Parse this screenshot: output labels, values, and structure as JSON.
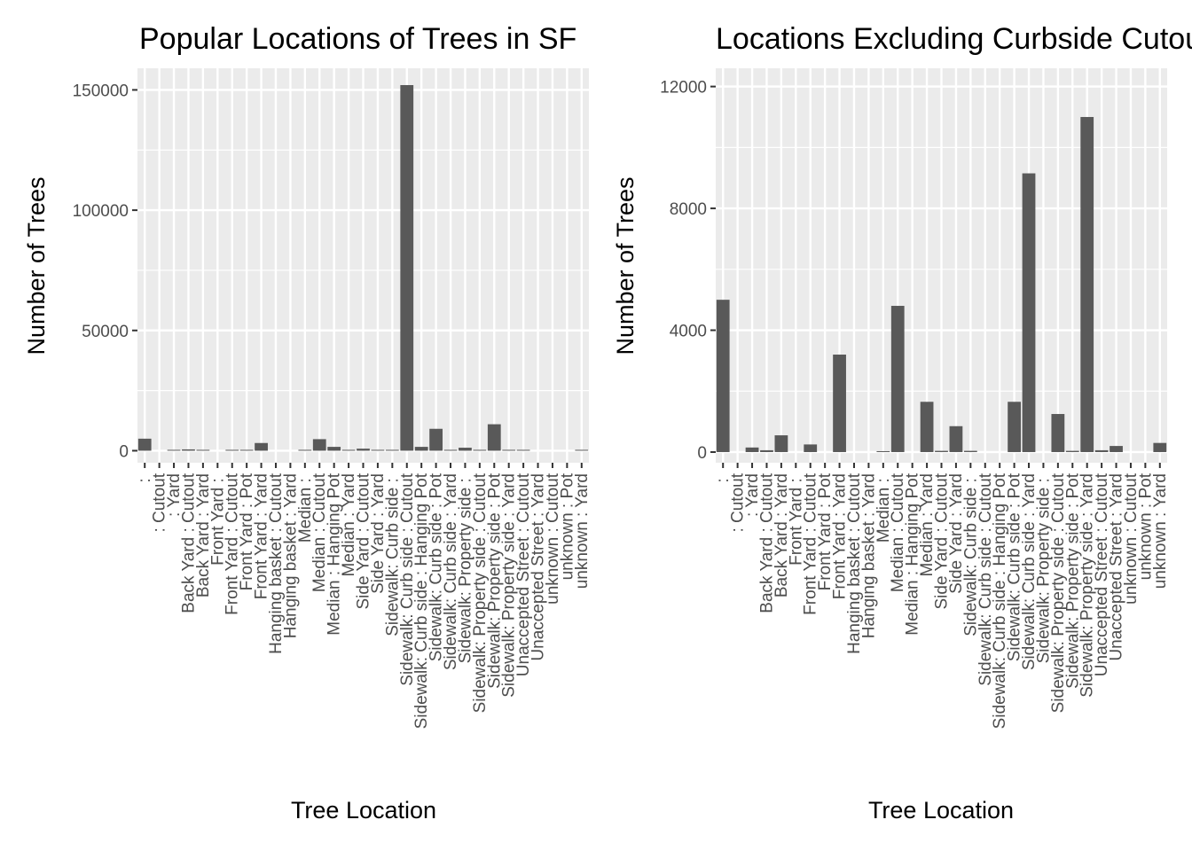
{
  "chart_data": [
    {
      "type": "bar",
      "title": "Popular Locations of Trees in SF",
      "xlabel": "Tree Location",
      "ylabel": "Number of Trees",
      "ylim": [
        -5000,
        159000
      ],
      "yticks": [
        0,
        50000,
        100000,
        150000
      ],
      "ytick_labels": [
        "0",
        "50000",
        "100000",
        "150000"
      ],
      "grid": true,
      "panel_background": "#ebebeb",
      "bar_color": "#595959",
      "categories": [
        " : ",
        " : Cutout",
        " : Yard",
        "Back Yard : Cutout",
        "Back Yard : Yard",
        "Front Yard : ",
        "Front Yard : Cutout",
        "Front Yard : Pot",
        "Front Yard : Yard",
        "Hanging basket : Cutout",
        "Hanging basket : Yard",
        "Median : ",
        "Median : Cutout",
        "Median : Hanging Pot",
        "Median : Yard",
        "Side Yard : Cutout",
        "Side Yard : Yard",
        "Sidewalk: Curb side : ",
        "Sidewalk: Curb side : Cutout",
        "Sidewalk: Curb side : Hanging Pot",
        "Sidewalk: Curb side : Pot",
        "Sidewalk: Curb side : Yard",
        "Sidewalk: Property side : ",
        "Sidewalk: Property side : Cutout",
        "Sidewalk: Property side : Pot",
        "Sidewalk: Property side : Yard",
        "Unaccepted Street : Cutout",
        "Unaccepted Street : Yard",
        "unknown : Cutout",
        "unknown : Pot",
        "unknown : Yard"
      ],
      "values": [
        5000,
        0,
        150,
        550,
        40,
        0,
        250,
        20,
        3200,
        0,
        0,
        30,
        4800,
        1600,
        40,
        850,
        40,
        30,
        152000,
        1600,
        9100,
        40,
        1250,
        20,
        11000,
        60,
        200,
        0,
        0,
        0,
        300
      ]
    },
    {
      "type": "bar",
      "title": "Locations Excluding Curbside Cutouts",
      "xlabel": "Tree Location",
      "ylabel": "Number of Trees",
      "ylim": [
        -350,
        12600
      ],
      "yticks": [
        0,
        4000,
        8000,
        12000
      ],
      "ytick_labels": [
        "0",
        "4000",
        "8000",
        "12000"
      ],
      "grid": true,
      "panel_background": "#ebebeb",
      "bar_color": "#595959",
      "categories": [
        " : ",
        " : Cutout",
        " : Yard",
        "Back Yard : Cutout",
        "Back Yard : Yard",
        "Front Yard : ",
        "Front Yard : Cutout",
        "Front Yard : Pot",
        "Front Yard : Yard",
        "Hanging basket : Cutout",
        "Hanging basket : Yard",
        "Median : ",
        "Median : Cutout",
        "Median : Hanging Pot",
        "Median : Yard",
        "Side Yard : Cutout",
        "Side Yard : Yard",
        "Sidewalk: Curb side : ",
        "Sidewalk: Curb side : Cutout",
        "Sidewalk: Curb side : Hanging Pot",
        "Sidewalk: Curb side : Pot",
        "Sidewalk: Curb side : Yard",
        "Sidewalk: Property side : ",
        "Sidewalk: Property side : Cutout",
        "Sidewalk: Property side : Pot",
        "Sidewalk: Property side : Yard",
        "Unaccepted Street : Cutout",
        "Unaccepted Street : Yard",
        "unknown : Cutout",
        "unknown : Pot",
        "unknown : Yard"
      ],
      "values": [
        5000,
        0,
        150,
        60,
        550,
        0,
        250,
        0,
        3200,
        0,
        0,
        30,
        4800,
        0,
        1650,
        40,
        850,
        40,
        0,
        0,
        1650,
        9150,
        0,
        1250,
        40,
        11000,
        60,
        200,
        0,
        0,
        300
      ]
    }
  ]
}
